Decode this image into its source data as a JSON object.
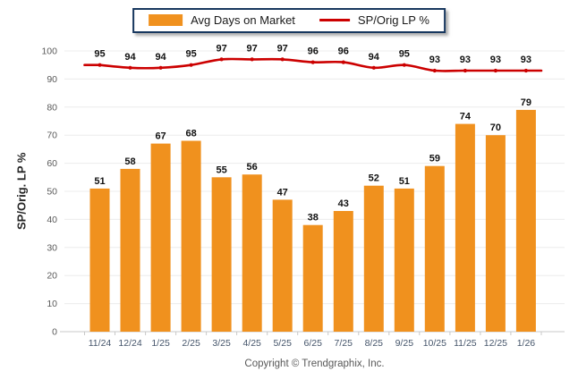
{
  "legend": {
    "bar_label": "Avg Days on Market",
    "line_label": "SP/Orig LP %"
  },
  "y_axis_title": "SP/Orig. LP %",
  "copyright": "Copyright © Trendgraphix, Inc.",
  "colors": {
    "bar": "#F0911E",
    "line": "#CC0000",
    "grid": "#ECECEC",
    "axis": "#C8C8C8",
    "x_tick_label": "#44546A",
    "y_tick_label": "#595959",
    "value_label": "#111111",
    "legend_border": "#17375E"
  },
  "chart_data": {
    "type": "bar+line",
    "title": "",
    "categories": [
      "11/24",
      "12/24",
      "1/25",
      "2/25",
      "3/25",
      "4/25",
      "5/25",
      "6/25",
      "7/25",
      "8/25",
      "9/25",
      "10/25",
      "11/25",
      "12/25",
      "1/26"
    ],
    "series": [
      {
        "name": "Avg Days on Market",
        "type": "bar",
        "values": [
          51,
          58,
          67,
          68,
          55,
          56,
          47,
          38,
          43,
          52,
          51,
          59,
          74,
          70,
          79
        ]
      },
      {
        "name": "SP/Orig LP %",
        "type": "line",
        "values": [
          95,
          94,
          94,
          95,
          97,
          97,
          97,
          96,
          96,
          94,
          95,
          93,
          93,
          93,
          93
        ]
      }
    ],
    "xlabel": "",
    "ylabel": "SP/Orig. LP %",
    "ylim": [
      0,
      100
    ],
    "yticks": [
      0,
      10,
      20,
      30,
      40,
      50,
      60,
      70,
      80,
      90,
      100
    ],
    "grid": true,
    "legend_position": "top"
  }
}
